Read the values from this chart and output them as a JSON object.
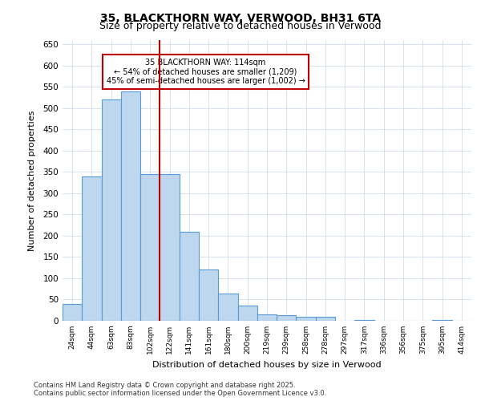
{
  "title_line1": "35, BLACKTHORN WAY, VERWOOD, BH31 6TA",
  "title_line2": "Size of property relative to detached houses in Verwood",
  "xlabel": "Distribution of detached houses by size in Verwood",
  "ylabel": "Number of detached properties",
  "footer": "Contains HM Land Registry data © Crown copyright and database right 2025.\nContains public sector information licensed under the Open Government Licence v3.0.",
  "bin_labels": [
    "24sqm",
    "44sqm",
    "63sqm",
    "83sqm",
    "102sqm",
    "122sqm",
    "141sqm",
    "161sqm",
    "180sqm",
    "200sqm",
    "219sqm",
    "239sqm",
    "258sqm",
    "278sqm",
    "297sqm",
    "317sqm",
    "336sqm",
    "356sqm",
    "375sqm",
    "395sqm",
    "414sqm"
  ],
  "bar_heights": [
    40,
    340,
    520,
    540,
    345,
    345,
    210,
    120,
    65,
    35,
    15,
    13,
    10,
    10,
    0,
    2,
    0,
    0,
    0,
    2,
    0
  ],
  "bar_color": "#BDD7EE",
  "bar_edge_color": "#5B9BD5",
  "vline_x": 4.5,
  "vline_color": "#C00000",
  "annotation_text": "35 BLACKTHORN WAY: 114sqm\n← 54% of detached houses are smaller (1,209)\n45% of semi-detached houses are larger (1,002) →",
  "annotation_box_color": "#C00000",
  "ylim": [
    0,
    660
  ],
  "yticks": [
    0,
    50,
    100,
    150,
    200,
    250,
    300,
    350,
    400,
    450,
    500,
    550,
    600,
    650
  ],
  "background_color": "#FFFFFF",
  "grid_color": "#C8D8E8"
}
